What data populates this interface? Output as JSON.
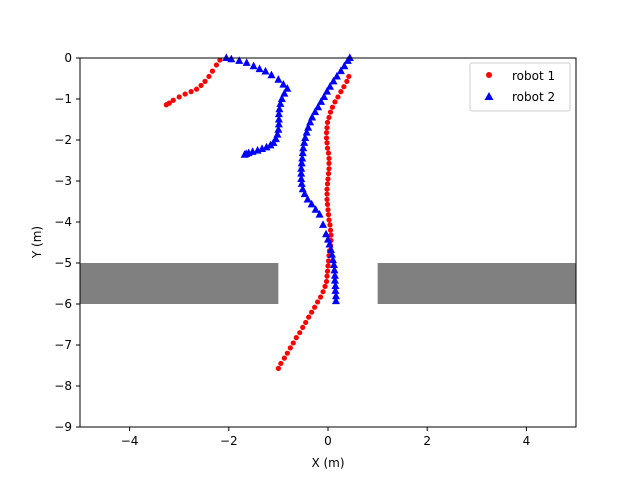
{
  "chart_data": {
    "type": "scatter",
    "xlabel": "X (m)",
    "ylabel": "Y (m)",
    "xlim": [
      -5,
      5
    ],
    "ylim": [
      -9,
      0
    ],
    "xticks": [
      -4,
      -2,
      0,
      2,
      4
    ],
    "yticks": [
      0,
      -1,
      -2,
      -3,
      -4,
      -5,
      -6,
      -7,
      -8,
      -9
    ],
    "xtick_labels": [
      "−4",
      "−2",
      "0",
      "2",
      "4"
    ],
    "ytick_labels": [
      "0",
      "−1",
      "−2",
      "−3",
      "−4",
      "−5",
      "−6",
      "−7",
      "−8",
      "−9"
    ],
    "grid": false,
    "legend_position": "upper right",
    "obstacles": [
      {
        "x": [
          -5,
          -1
        ],
        "y": [
          -6,
          -5
        ],
        "color": "#808080"
      },
      {
        "x": [
          1,
          5
        ],
        "y": [
          -6,
          -5
        ],
        "color": "#808080"
      }
    ],
    "series": [
      {
        "name": "robot 1",
        "marker": "circle",
        "color": "#ff0000",
        "x": [
          -1.0,
          -0.95,
          -0.88,
          -0.82,
          -0.76,
          -0.7,
          -0.64,
          -0.57,
          -0.51,
          -0.45,
          -0.39,
          -0.33,
          -0.27,
          -0.21,
          -0.15,
          -0.1,
          -0.06,
          -0.03,
          -0.02,
          -0.01,
          0.0,
          0.01,
          0.02,
          0.03,
          0.05,
          0.06,
          0.06,
          0.05,
          0.04,
          0.02,
          0.01,
          0.0,
          -0.01,
          -0.02,
          -0.02,
          -0.02,
          -0.01,
          0.0,
          0.01,
          0.02,
          0.02,
          0.02,
          0.01,
          -0.01,
          -0.02,
          -0.03,
          -0.03,
          -0.02,
          -0.01,
          0.02,
          0.05,
          0.09,
          0.14,
          0.2,
          0.26,
          0.32,
          0.38,
          0.42,
          -2.18,
          -2.25,
          -2.33,
          -2.4,
          -2.48,
          -2.56,
          -2.65,
          -2.76,
          -2.88,
          -3.0,
          -3.12,
          -3.2,
          -3.26
        ],
        "y": [
          -7.57,
          -7.45,
          -7.32,
          -7.2,
          -7.07,
          -6.95,
          -6.82,
          -6.7,
          -6.57,
          -6.45,
          -6.32,
          -6.2,
          -6.08,
          -5.95,
          -5.83,
          -5.7,
          -5.57,
          -5.45,
          -5.32,
          -5.2,
          -5.07,
          -4.95,
          -4.82,
          -4.7,
          -4.57,
          -4.45,
          -4.32,
          -4.2,
          -4.07,
          -3.95,
          -3.82,
          -3.7,
          -3.57,
          -3.45,
          -3.32,
          -3.2,
          -3.07,
          -2.95,
          -2.82,
          -2.7,
          -2.57,
          -2.45,
          -2.32,
          -2.2,
          -2.07,
          -1.95,
          -1.82,
          -1.7,
          -1.57,
          -1.45,
          -1.32,
          -1.2,
          -1.07,
          -0.95,
          -0.82,
          -0.7,
          -0.57,
          -0.45,
          -0.05,
          -0.17,
          -0.32,
          -0.45,
          -0.57,
          -0.67,
          -0.76,
          -0.82,
          -0.88,
          -0.95,
          -1.03,
          -1.1,
          -1.14
        ]
      },
      {
        "name": "robot 2",
        "marker": "triangle",
        "color": "#0000ff",
        "x": [
          0.16,
          0.16,
          0.15,
          0.15,
          0.14,
          0.14,
          0.13,
          0.12,
          0.1,
          0.08,
          0.06,
          0.03,
          0.0,
          -0.04,
          -0.1,
          -0.17,
          -0.25,
          -0.33,
          -0.41,
          -0.47,
          -0.51,
          -0.53,
          -0.54,
          -0.54,
          -0.54,
          -0.53,
          -0.52,
          -0.51,
          -0.5,
          -0.48,
          -0.46,
          -0.43,
          -0.4,
          -0.36,
          -0.32,
          -0.26,
          -0.2,
          -0.14,
          -0.08,
          -0.02,
          0.04,
          0.11,
          0.18,
          0.26,
          0.33,
          0.4,
          0.44,
          -0.82,
          -0.88,
          -0.93,
          -0.96,
          -0.98,
          -0.99,
          -0.99,
          -0.99,
          -1.0,
          -1.02,
          -1.05,
          -1.1,
          -1.16,
          -1.24,
          -1.33,
          -1.42,
          -1.52,
          -1.6,
          -1.65,
          -1.68,
          -0.9,
          -1.0,
          -1.14,
          -1.26,
          -1.38,
          -1.5,
          -1.64,
          -1.79,
          -1.95,
          -2.05
        ],
        "y": [
          -5.93,
          -5.81,
          -5.68,
          -5.56,
          -5.43,
          -5.31,
          -5.18,
          -5.05,
          -4.93,
          -4.8,
          -4.68,
          -4.55,
          -4.43,
          -4.3,
          -4.07,
          -3.82,
          -3.7,
          -3.57,
          -3.45,
          -3.32,
          -3.2,
          -3.07,
          -2.95,
          -2.82,
          -2.7,
          -2.57,
          -2.45,
          -2.32,
          -2.2,
          -2.07,
          -1.95,
          -1.82,
          -1.7,
          -1.57,
          -1.45,
          -1.32,
          -1.2,
          -1.07,
          -0.95,
          -0.82,
          -0.7,
          -0.57,
          -0.45,
          -0.32,
          -0.2,
          -0.07,
          0.0,
          -0.75,
          -0.87,
          -1.0,
          -1.12,
          -1.25,
          -1.37,
          -1.5,
          -1.62,
          -1.75,
          -1.87,
          -1.98,
          -2.07,
          -2.13,
          -2.18,
          -2.22,
          -2.26,
          -2.29,
          -2.32,
          -2.34,
          -2.36,
          -0.65,
          -0.53,
          -0.42,
          -0.33,
          -0.27,
          -0.2,
          -0.12,
          -0.07,
          -0.03,
          0.0
        ]
      }
    ]
  }
}
